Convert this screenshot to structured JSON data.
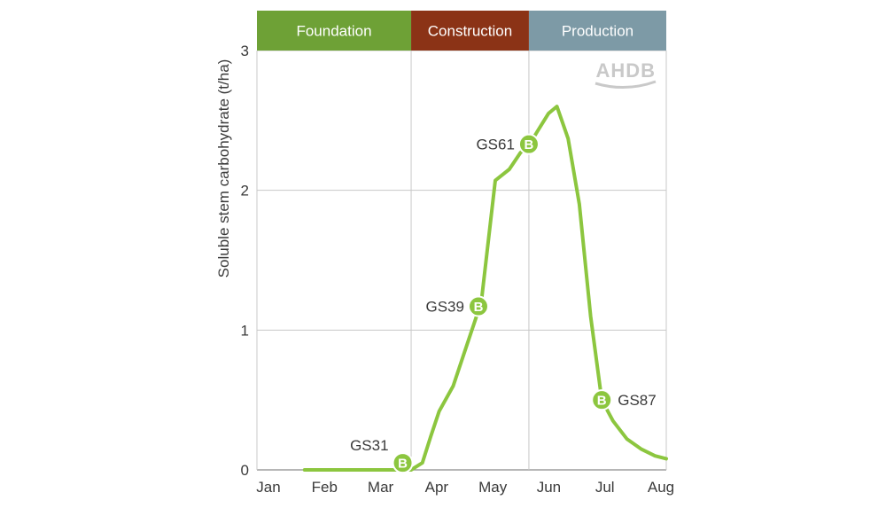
{
  "chart_data": {
    "type": "line",
    "ylabel": "Soluble stem carbohydrate (t/ha)",
    "xlabel": "",
    "ylim": [
      0,
      3
    ],
    "yticks": [
      "0",
      "1",
      "2",
      "3"
    ],
    "months": [
      "Jan",
      "Feb",
      "Mar",
      "Apr",
      "May",
      "Jun",
      "Jul",
      "Aug"
    ],
    "xlim": [
      0,
      7.3
    ],
    "grid": true,
    "phases": [
      {
        "label": "Foundation",
        "start": 0,
        "end": 2.75,
        "color": "#6ea136"
      },
      {
        "label": "Construction",
        "start": 2.75,
        "end": 4.85,
        "color": "#8b3316"
      },
      {
        "label": "Production",
        "start": 4.85,
        "end": 7.3,
        "color": "#7d9aa6"
      }
    ],
    "series": [
      {
        "color": "#8cc63f",
        "x": [
          0.85,
          1.5,
          2.0,
          2.5,
          2.75,
          2.95,
          3.1,
          3.25,
          3.5,
          3.75,
          4.0,
          4.25,
          4.5,
          4.7,
          4.85,
          5.0,
          5.2,
          5.35,
          5.55,
          5.75,
          5.95,
          6.15,
          6.35,
          6.6,
          6.85,
          7.1,
          7.3
        ],
        "y": [
          0.0,
          0.0,
          0.0,
          0.0,
          0.0,
          0.05,
          0.24,
          0.42,
          0.6,
          0.9,
          1.2,
          2.07,
          2.15,
          2.27,
          2.32,
          2.42,
          2.55,
          2.6,
          2.37,
          1.9,
          1.1,
          0.5,
          0.35,
          0.22,
          0.15,
          0.1,
          0.08
        ]
      }
    ],
    "annotations": [
      {
        "label": "GS31",
        "marker": "B",
        "x": 2.6,
        "y": 0.05,
        "side": "left"
      },
      {
        "label": "GS39",
        "marker": "B",
        "x": 3.95,
        "y": 1.17,
        "side": "left"
      },
      {
        "label": "GS61",
        "marker": "B",
        "x": 4.85,
        "y": 2.33,
        "side": "left"
      },
      {
        "label": "GS87",
        "marker": "B",
        "x": 6.15,
        "y": 0.5,
        "side": "right"
      }
    ],
    "logo": "AHDB"
  }
}
